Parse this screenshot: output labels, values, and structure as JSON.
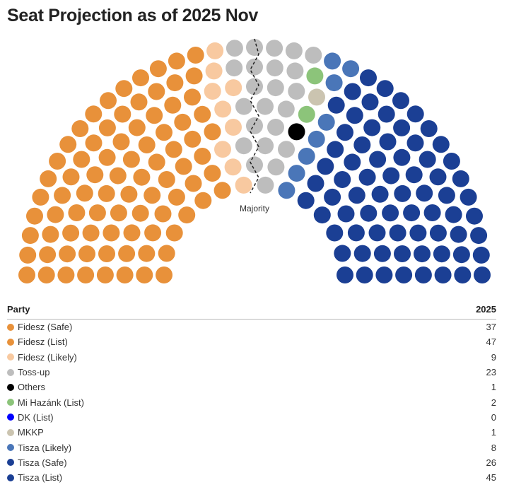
{
  "chart_data": {
    "type": "parliament",
    "title": "Seat Projection as of 2025 Nov",
    "majority_label": "Majority",
    "table_header": {
      "party": "Party",
      "year": "2025"
    },
    "parties": [
      {
        "name": "Fidesz (Safe)",
        "seats": 37,
        "color": "#e8913a"
      },
      {
        "name": "Fidesz (List)",
        "seats": 47,
        "color": "#e8913a"
      },
      {
        "name": "Fidesz (Likely)",
        "seats": 9,
        "color": "#f8c9a0"
      },
      {
        "name": "Toss-up",
        "seats": 23,
        "color": "#bdbdbd"
      },
      {
        "name": "Others",
        "seats": 1,
        "color": "#000000"
      },
      {
        "name": "Mi Hazánk (List)",
        "seats": 2,
        "color": "#8cc47a"
      },
      {
        "name": "DK (List)",
        "seats": 0,
        "color": "#0000ff"
      },
      {
        "name": "MKKP",
        "seats": 1,
        "color": "#cbc4b0"
      },
      {
        "name": "Tisza (Likely)",
        "seats": 8,
        "color": "#4a76b8"
      },
      {
        "name": "Tisza (Safe)",
        "seats": 26,
        "color": "#1b3f94"
      },
      {
        "name": "Tisza (List)",
        "seats": 45,
        "color": "#1b3f94"
      }
    ]
  }
}
